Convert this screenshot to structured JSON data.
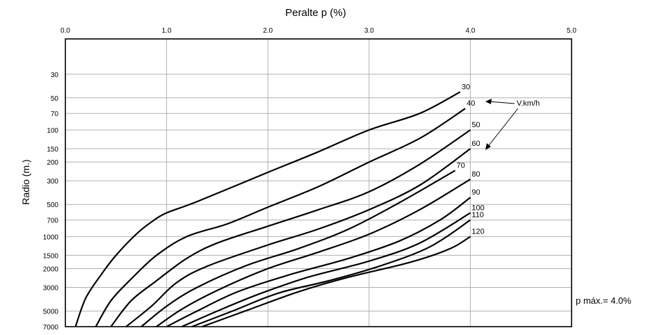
{
  "chart_data": {
    "type": "line",
    "title": "Peralte p (%)",
    "xlabel": "",
    "ylabel": "Radio (m.)",
    "xlim": [
      0.0,
      5.0
    ],
    "x_tick_labels": [
      "0.0",
      "1.0",
      "2.0",
      "3.0",
      "4.0",
      "5.0"
    ],
    "x_ticks": [
      0,
      1,
      2,
      3,
      4,
      5
    ],
    "y_scale": "log",
    "ylim": [
      7000,
      14
    ],
    "y_tick_labels": [
      "30",
      "50",
      "70",
      "100",
      "150",
      "200",
      "300",
      "500",
      "700",
      "1000",
      "1500",
      "2000",
      "3000",
      "5000",
      "7000"
    ],
    "y_ticks": [
      30,
      50,
      70,
      100,
      150,
      200,
      300,
      500,
      700,
      1000,
      1500,
      2000,
      3000,
      5000,
      7000
    ],
    "vertical_gridlines": [
      1,
      2,
      3,
      4
    ],
    "horizontal_gridlines_at_ticks": true,
    "series_annotation": "V.km/h",
    "note": "p máx.= 4.0%",
    "series": [
      {
        "name": "30",
        "points": [
          [
            0.1,
            7000
          ],
          [
            0.2,
            3800
          ],
          [
            0.35,
            2300
          ],
          [
            0.5,
            1500
          ],
          [
            0.7,
            950
          ],
          [
            0.85,
            730
          ],
          [
            1.0,
            600
          ],
          [
            1.3,
            470
          ],
          [
            2.0,
            250
          ],
          [
            2.5,
            160
          ],
          [
            3.0,
            100
          ],
          [
            3.5,
            70
          ],
          [
            3.9,
            44
          ]
        ]
      },
      {
        "name": "40",
        "points": [
          [
            0.3,
            7000
          ],
          [
            0.45,
            4000
          ],
          [
            0.65,
            2500
          ],
          [
            0.9,
            1500
          ],
          [
            1.2,
            1000
          ],
          [
            1.6,
            760
          ],
          [
            2.0,
            530
          ],
          [
            2.5,
            340
          ],
          [
            3.0,
            200
          ],
          [
            3.5,
            120
          ],
          [
            3.95,
            63
          ]
        ]
      },
      {
        "name": "50",
        "points": [
          [
            0.45,
            7000
          ],
          [
            0.65,
            4000
          ],
          [
            0.9,
            2600
          ],
          [
            1.2,
            1600
          ],
          [
            1.5,
            1150
          ],
          [
            2.0,
            800
          ],
          [
            2.5,
            560
          ],
          [
            3.0,
            380
          ],
          [
            3.5,
            210
          ],
          [
            4.0,
            100
          ]
        ]
      },
      {
        "name": "60",
        "points": [
          [
            0.6,
            7000
          ],
          [
            0.85,
            4500
          ],
          [
            1.1,
            2700
          ],
          [
            1.4,
            1900
          ],
          [
            2.0,
            1200
          ],
          [
            2.5,
            850
          ],
          [
            3.0,
            560
          ],
          [
            3.5,
            330
          ],
          [
            4.0,
            150
          ]
        ]
      },
      {
        "name": "70",
        "points": [
          [
            0.75,
            7000
          ],
          [
            1.0,
            4500
          ],
          [
            1.3,
            3000
          ],
          [
            1.8,
            1850
          ],
          [
            2.3,
            1300
          ],
          [
            2.8,
            850
          ],
          [
            3.3,
            480
          ],
          [
            3.85,
            240
          ]
        ]
      },
      {
        "name": "80",
        "points": [
          [
            0.9,
            7000
          ],
          [
            1.15,
            4800
          ],
          [
            1.5,
            3200
          ],
          [
            2.0,
            2000
          ],
          [
            2.5,
            1400
          ],
          [
            3.0,
            950
          ],
          [
            3.5,
            560
          ],
          [
            4.0,
            290
          ]
        ]
      },
      {
        "name": "90",
        "points": [
          [
            1.0,
            7000
          ],
          [
            1.3,
            5000
          ],
          [
            1.7,
            3300
          ],
          [
            2.2,
            2300
          ],
          [
            2.8,
            1600
          ],
          [
            3.3,
            1100
          ],
          [
            3.7,
            700
          ],
          [
            4.0,
            430
          ]
        ]
      },
      {
        "name": "100",
        "points": [
          [
            1.15,
            7000
          ],
          [
            1.5,
            5000
          ],
          [
            1.9,
            3500
          ],
          [
            2.4,
            2400
          ],
          [
            3.0,
            1700
          ],
          [
            3.5,
            1150
          ],
          [
            4.0,
            600
          ]
        ]
      },
      {
        "name": "110",
        "points": [
          [
            1.25,
            7000
          ],
          [
            1.65,
            5000
          ],
          [
            2.1,
            3400
          ],
          [
            2.6,
            2600
          ],
          [
            3.1,
            1900
          ],
          [
            3.6,
            1250
          ],
          [
            4.0,
            700
          ]
        ]
      },
      {
        "name": "120",
        "points": [
          [
            1.35,
            7000
          ],
          [
            1.8,
            4900
          ],
          [
            2.3,
            3300
          ],
          [
            2.8,
            2400
          ],
          [
            3.4,
            1750
          ],
          [
            3.8,
            1300
          ],
          [
            4.0,
            1000
          ]
        ]
      }
    ]
  }
}
